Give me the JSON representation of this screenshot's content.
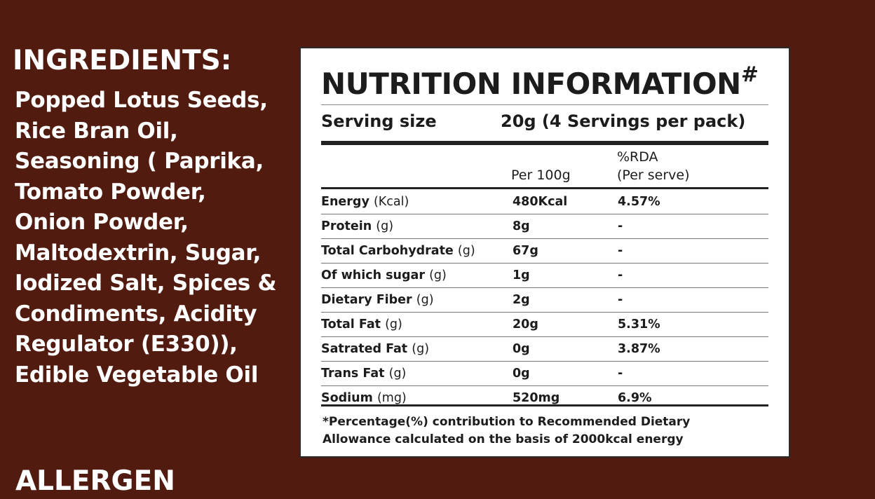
{
  "ingredients": {
    "title": "INGREDIENTS:",
    "text": "Popped Lotus Seeds,\nRice Bran Oil,\nSeasoning ( Paprika,\nTomato Powder,\nOnion Powder,\nMaltodextrin, Sugar,\nIodized Salt, Spices &\nCondiments, Acidity\nRegulator (E330)),\nEdible Vegetable Oil"
  },
  "allergen": {
    "title": "ALLERGEN"
  },
  "nutrition": {
    "title": "NUTRITION INFORMATION",
    "title_mark": "#",
    "serving_label": "Serving size",
    "serving_value": "20g (4 Servings per pack)",
    "col_per100": "Per 100g",
    "col_rda_line1": "%RDA",
    "col_rda_line2": "(Per serve)",
    "rows": [
      {
        "name": "Energy",
        "unit": "(Kcal)",
        "per100": "480Kcal",
        "rda": "4.57%"
      },
      {
        "name": "Protein",
        "unit": "(g)",
        "per100": "8g",
        "rda": "-"
      },
      {
        "name": "Total Carbohydrate",
        "unit": "(g)",
        "per100": "67g",
        "rda": "-"
      },
      {
        "name": "Of which sugar",
        "unit": "(g)",
        "per100": "1g",
        "rda": "-"
      },
      {
        "name": "Dietary Fiber",
        "unit": "(g)",
        "per100": "2g",
        "rda": "-"
      },
      {
        "name": "Total Fat",
        "unit": "(g)",
        "per100": "20g",
        "rda": "5.31%"
      },
      {
        "name": "Satrated Fat",
        "unit": "(g)",
        "per100": "0g",
        "rda": "3.87%"
      },
      {
        "name": "Trans Fat",
        "unit": "(g)",
        "per100": "0g",
        "rda": "-"
      },
      {
        "name": "Sodium",
        "unit": "(mg)",
        "per100": "520mg",
        "rda": "6.9%"
      }
    ],
    "footnote": "*Percentage(%) contribution to Recommended Dietary\nAllowance calculated on the basis of 2000kcal energy"
  }
}
